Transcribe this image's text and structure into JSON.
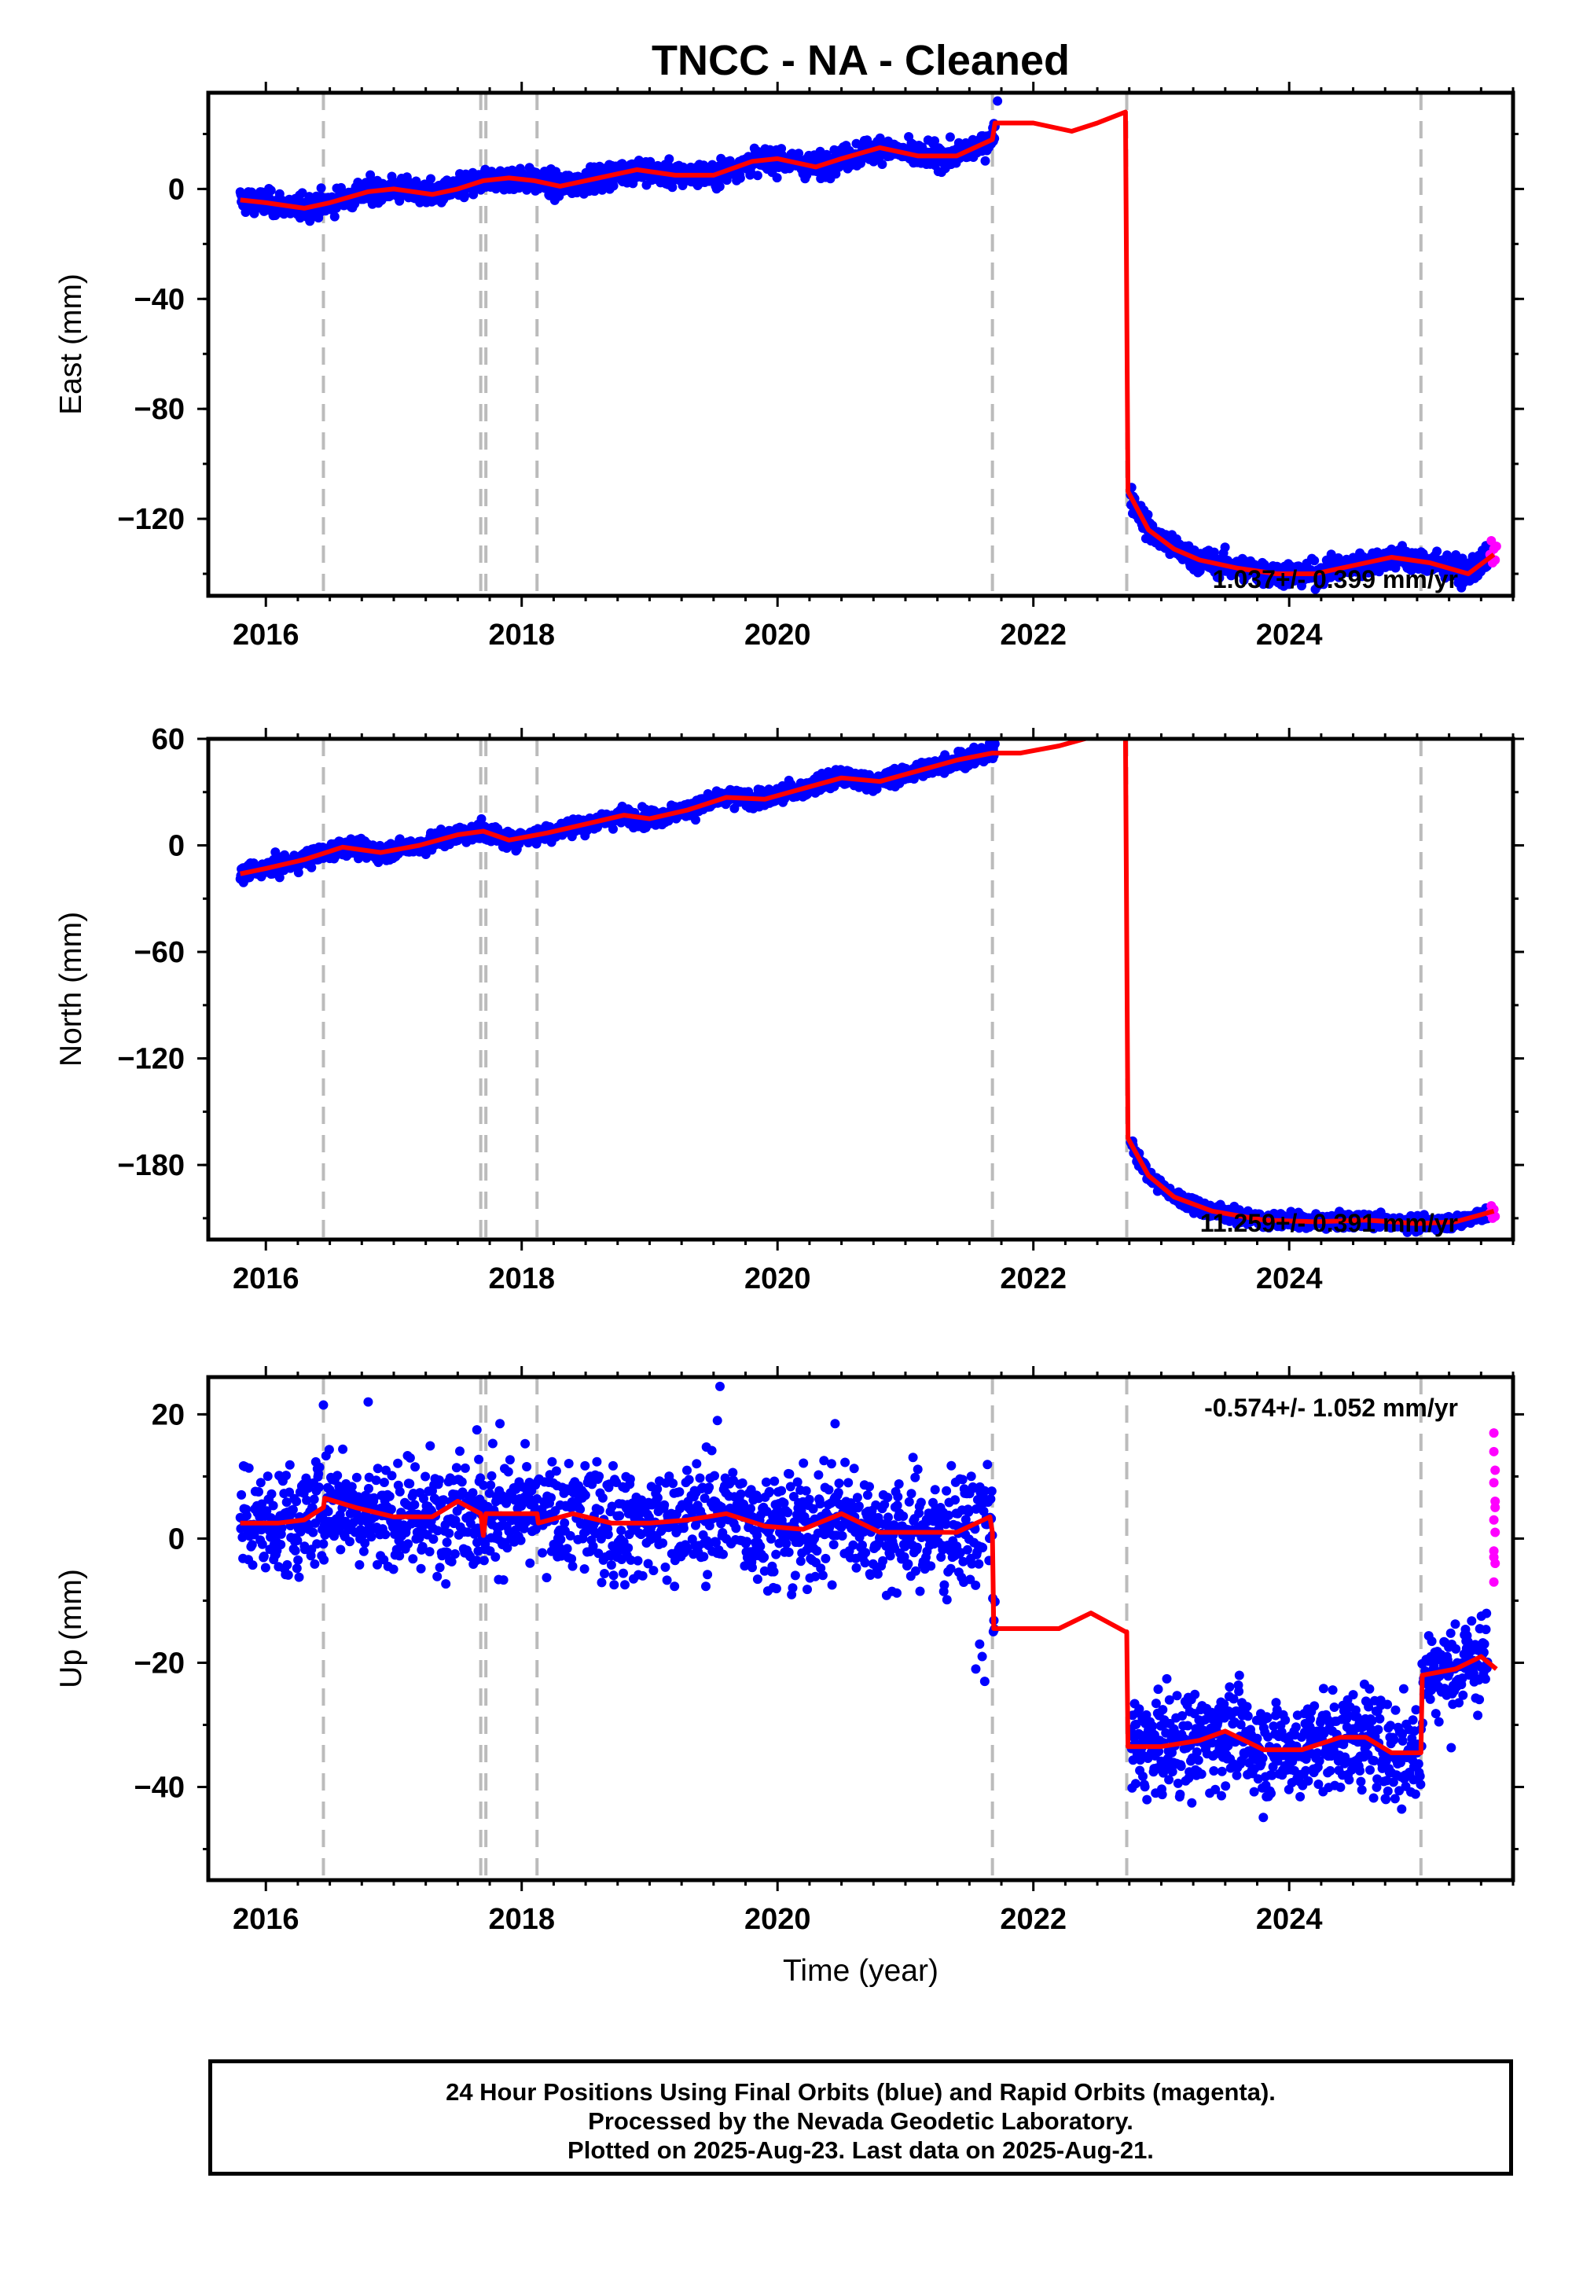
{
  "title": "TNCC  - NA - Cleaned",
  "xlabel": "Time (year)",
  "footer": {
    "line1": "24 Hour Positions Using Final Orbits (blue) and Rapid Orbits (magenta).",
    "line2": "Processed by the Nevada Geodetic Laboratory.",
    "line3": "Plotted on 2025-Aug-23. Last data on 2025-Aug-21."
  },
  "colors": {
    "final": "#0000ff",
    "rapid": "#ff00ff",
    "model": "#ff0000",
    "steps": "#bbbbbb"
  },
  "chart_data": [
    {
      "type": "scatter",
      "panel": "east",
      "ylabel": "East (mm)",
      "xlim": [
        2015.55,
        2025.75
      ],
      "ylim": [
        -148,
        35
      ],
      "xticks": [
        2016,
        2018,
        2020,
        2022,
        2024
      ],
      "yticks": [
        0,
        -40,
        -80,
        -120
      ],
      "grid": false,
      "rate_label": "1.037+/- 0.399 mm/yr",
      "rate_label_position": "bottom-right",
      "step_lines": [
        2016.45,
        2017.68,
        2017.72,
        2018.12,
        2021.68,
        2022.73,
        2025.03
      ],
      "model_line": {
        "name": "model",
        "x": [
          2015.8,
          2016.0,
          2016.3,
          2016.5,
          2016.8,
          2017.0,
          2017.3,
          2017.5,
          2017.7,
          2017.9,
          2018.1,
          2018.3,
          2018.6,
          2018.9,
          2019.2,
          2019.5,
          2019.8,
          2020.0,
          2020.3,
          2020.5,
          2020.8,
          2021.1,
          2021.4,
          2021.68,
          2021.7,
          2022.0,
          2022.3,
          2022.5,
          2022.72,
          2022.74,
          2022.9,
          2023.1,
          2023.3,
          2023.6,
          2023.9,
          2024.2,
          2024.5,
          2024.8,
          2025.1,
          2025.4,
          2025.6
        ],
        "y": [
          -4,
          -5,
          -7,
          -5,
          -1,
          0,
          -2,
          0,
          3,
          4,
          3,
          1,
          4,
          7,
          5,
          5,
          10,
          11,
          8,
          11,
          15,
          12,
          12,
          18,
          24,
          24,
          21,
          24,
          28,
          -110,
          -124,
          -131,
          -135,
          -138,
          -140,
          -140,
          -137,
          -134,
          -136,
          -140,
          -133
        ]
      },
      "final_series": {
        "name": "Final Orbits",
        "x_range": [
          2015.8,
          2021.7
        ],
        "noise": 2.2,
        "extra_points": [
          [
            2021.72,
            32
          ]
        ],
        "post_x_range": [
          2022.76,
          2025.55
        ],
        "post_noise": 2.2
      },
      "rapid_series": {
        "name": "Rapid Orbits",
        "points": [
          [
            2025.57,
            -133
          ],
          [
            2025.58,
            -128
          ],
          [
            2025.59,
            -136
          ],
          [
            2025.6,
            -131
          ],
          [
            2025.61,
            -135
          ],
          [
            2025.62,
            -130
          ]
        ]
      }
    },
    {
      "type": "scatter",
      "panel": "north",
      "ylabel": "North (mm)",
      "xlim": [
        2015.55,
        2025.75
      ],
      "ylim": [
        -222,
        60
      ],
      "xticks": [
        2016,
        2018,
        2020,
        2022,
        2024
      ],
      "yticks": [
        60,
        0,
        -60,
        -120,
        -180
      ],
      "grid": false,
      "rate_label": "11.259+/- 0.391 mm/yr",
      "rate_label_position": "bottom-right",
      "step_lines": [
        2016.45,
        2017.68,
        2017.72,
        2018.12,
        2021.68,
        2022.73,
        2025.03
      ],
      "model_line": {
        "name": "model",
        "x": [
          2015.8,
          2016.0,
          2016.3,
          2016.6,
          2016.9,
          2017.2,
          2017.5,
          2017.7,
          2017.9,
          2018.2,
          2018.5,
          2018.8,
          2019.0,
          2019.3,
          2019.6,
          2019.9,
          2020.2,
          2020.5,
          2020.8,
          2021.1,
          2021.4,
          2021.68,
          2021.9,
          2022.2,
          2022.5,
          2022.72,
          2022.74,
          2022.9,
          2023.1,
          2023.4,
          2023.8,
          2024.2,
          2024.6,
          2025.0,
          2025.3,
          2025.6
        ],
        "y": [
          -16,
          -13,
          -8,
          -1,
          -4,
          0,
          6,
          8,
          3,
          7,
          12,
          17,
          15,
          20,
          27,
          26,
          32,
          38,
          36,
          42,
          48,
          52,
          52,
          56,
          62,
          62,
          -165,
          -186,
          -198,
          -206,
          -211,
          -212,
          -211,
          -213,
          -212,
          -206
        ]
      },
      "final_series": {
        "name": "Final Orbits",
        "x_range": [
          2015.8,
          2021.7
        ],
        "noise": 2.5,
        "extra_points": [],
        "post_x_range": [
          2022.76,
          2025.55
        ],
        "post_noise": 2.0
      },
      "rapid_series": {
        "name": "Rapid Orbits",
        "points": [
          [
            2025.57,
            -207
          ],
          [
            2025.58,
            -203
          ],
          [
            2025.59,
            -210
          ],
          [
            2025.6,
            -205
          ],
          [
            2025.61,
            -209
          ]
        ]
      }
    },
    {
      "type": "scatter",
      "panel": "up",
      "ylabel": "Up (mm)",
      "xlim": [
        2015.55,
        2025.75
      ],
      "ylim": [
        -55,
        26
      ],
      "xticks": [
        2016,
        2018,
        2020,
        2022,
        2024
      ],
      "yticks": [
        20,
        0,
        -20,
        -40
      ],
      "grid": false,
      "rate_label": "-0.574+/- 1.052 mm/yr",
      "rate_label_position": "top-right",
      "step_lines": [
        2016.45,
        2017.68,
        2017.72,
        2018.12,
        2021.68,
        2022.73,
        2025.03
      ],
      "model_line": {
        "name": "model",
        "x": [
          2015.8,
          2016.1,
          2016.3,
          2016.45,
          2016.46,
          2016.7,
          2017.0,
          2017.3,
          2017.5,
          2017.68,
          2017.7,
          2017.72,
          2018.0,
          2018.12,
          2018.13,
          2018.4,
          2018.7,
          2019.0,
          2019.3,
          2019.6,
          2019.9,
          2020.2,
          2020.5,
          2020.8,
          2021.1,
          2021.4,
          2021.66,
          2021.68,
          2021.69,
          2021.9,
          2022.2,
          2022.45,
          2022.72,
          2022.73,
          2022.74,
          2023.0,
          2023.3,
          2023.5,
          2023.8,
          2024.1,
          2024.4,
          2024.6,
          2024.8,
          2025.02,
          2025.03,
          2025.04,
          2025.3,
          2025.5,
          2025.62
        ],
        "y": [
          2.5,
          2.5,
          3,
          5,
          6.5,
          5,
          3.5,
          3.5,
          6,
          4,
          0.5,
          4,
          4,
          4,
          2.5,
          4,
          2.5,
          2.5,
          3,
          4,
          2,
          1.5,
          4,
          1,
          1,
          1,
          3.5,
          1,
          -14.5,
          -14.5,
          -14.5,
          -12,
          -15,
          -15,
          -33.5,
          -33.5,
          -32.5,
          -31,
          -34,
          -34,
          -32,
          -32,
          -34.5,
          -34.5,
          -34.5,
          -22,
          -21,
          -19,
          -21
        ]
      },
      "final_series": {
        "name": "Final Orbits",
        "x_range": [
          2015.8,
          2021.7
        ],
        "noise": 4.5,
        "extra_points": [
          [
            2016.45,
            21.5
          ],
          [
            2016.8,
            22
          ],
          [
            2017.65,
            17.5
          ],
          [
            2017.83,
            18.5
          ],
          [
            2019.55,
            24.5
          ],
          [
            2019.53,
            19
          ],
          [
            2020.45,
            18.5
          ],
          [
            2021.55,
            -21
          ],
          [
            2021.6,
            -19
          ],
          [
            2021.62,
            -23
          ],
          [
            2021.58,
            -17
          ]
        ],
        "post_x_range": [
          2022.76,
          2025.55
        ],
        "post_noise": 4.0
      },
      "rapid_series": {
        "name": "Rapid Orbits",
        "points": [
          [
            2025.6,
            17
          ],
          [
            2025.6,
            14
          ],
          [
            2025.61,
            11
          ],
          [
            2025.6,
            9
          ],
          [
            2025.61,
            6
          ],
          [
            2025.6,
            3
          ],
          [
            2025.61,
            1
          ],
          [
            2025.6,
            -2
          ],
          [
            2025.61,
            -4
          ],
          [
            2025.6,
            -7
          ],
          [
            2025.61,
            5
          ],
          [
            2025.6,
            -3
          ]
        ]
      }
    }
  ]
}
